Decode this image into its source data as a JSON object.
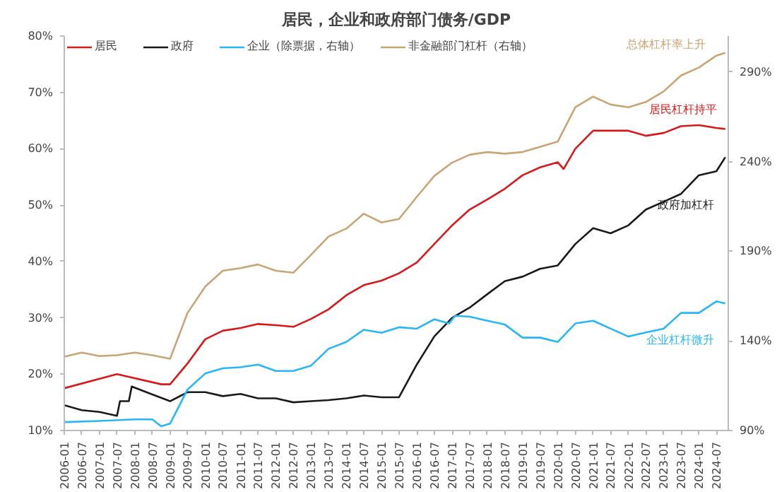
{
  "chart_data": {
    "type": "line",
    "title": "居民，企业和政府部门债务/GDP",
    "xlim": [
      "2006-01",
      "2024-11"
    ],
    "xticks": [
      "2006-01",
      "2006-07",
      "2007-01",
      "2007-07",
      "2008-01",
      "2008-07",
      "2009-01",
      "2009-07",
      "2010-01",
      "2010-07",
      "2011-01",
      "2011-07",
      "2012-01",
      "2012-07",
      "2013-01",
      "2013-07",
      "2014-01",
      "2014-07",
      "2015-01",
      "2015-07",
      "2016-01",
      "2016-07",
      "2017-01",
      "2017-07",
      "2018-01",
      "2018-07",
      "2019-01",
      "2019-07",
      "2020-01",
      "2020-07",
      "2021-01",
      "2021-07",
      "2022-01",
      "2022-07",
      "2023-01",
      "2023-07",
      "2024-01",
      "2024-07"
    ],
    "ylim": [
      10,
      80
    ],
    "yticks": [
      {
        "value": 10,
        "label": "10%"
      },
      {
        "value": 20,
        "label": "20%"
      },
      {
        "value": 30,
        "label": "30%"
      },
      {
        "value": 40,
        "label": "40%"
      },
      {
        "value": 50,
        "label": "50%"
      },
      {
        "value": 60,
        "label": "60%"
      },
      {
        "value": 70,
        "label": "70%"
      },
      {
        "value": 80,
        "label": "80%"
      }
    ],
    "y2lim": [
      90,
      310
    ],
    "y2ticks": [
      {
        "value": 90,
        "label": "90%"
      },
      {
        "value": 140,
        "label": "140%"
      },
      {
        "value": 190,
        "label": "190%"
      },
      {
        "value": 240,
        "label": "240%"
      },
      {
        "value": 290,
        "label": "290%"
      }
    ],
    "grid": false,
    "legend": "top left",
    "marker": "none",
    "line_style": "solid",
    "series": [
      {
        "name": "居民",
        "color": "#d7191c",
        "x": [
          "2006-01",
          "2007-07",
          "2008-10",
          "2009-01",
          "2009-07",
          "2010-01",
          "2010-07",
          "2011-01",
          "2011-07",
          "2012-01",
          "2012-07",
          "2013-01",
          "2013-07",
          "2014-01",
          "2014-07",
          "2015-01",
          "2015-07",
          "2016-01",
          "2016-07",
          "2017-01",
          "2017-07",
          "2018-01",
          "2018-07",
          "2019-01",
          "2019-07",
          "2020-01",
          "2020-03",
          "2020-07",
          "2021-01",
          "2021-07",
          "2022-01",
          "2022-07",
          "2023-01",
          "2023-07",
          "2024-01",
          "2024-07",
          "2024-10"
        ],
        "values": [
          17.5,
          20.0,
          18.2,
          18.2,
          21.9,
          26.2,
          27.7,
          28.2,
          28.9,
          28.7,
          28.4,
          29.8,
          31.5,
          34.0,
          35.8,
          36.6,
          37.9,
          39.8,
          43.1,
          46.4,
          49.2,
          51.0,
          52.9,
          55.3,
          56.7,
          57.6,
          56.4,
          60.0,
          63.2,
          63.2,
          63.2,
          62.3,
          62.8,
          64.0,
          64.2,
          63.7,
          63.5
        ]
      },
      {
        "name": "政府",
        "color": "#1a1a1a",
        "x": [
          "2006-01",
          "2006-07",
          "2007-01",
          "2007-07",
          "2007-08",
          "2007-11",
          "2007-12",
          "2008-07",
          "2009-01",
          "2009-07",
          "2010-01",
          "2010-07",
          "2011-01",
          "2011-07",
          "2012-01",
          "2012-07",
          "2013-01",
          "2013-07",
          "2014-01",
          "2014-07",
          "2015-01",
          "2015-07",
          "2016-01",
          "2016-07",
          "2017-01",
          "2017-07",
          "2018-01",
          "2018-07",
          "2019-01",
          "2019-07",
          "2020-01",
          "2020-07",
          "2021-01",
          "2021-07",
          "2022-01",
          "2022-07",
          "2023-01",
          "2023-07",
          "2024-01",
          "2024-07",
          "2024-10"
        ],
        "values": [
          14.5,
          13.6,
          13.3,
          12.6,
          15.2,
          15.2,
          17.8,
          16.4,
          15.2,
          16.8,
          16.8,
          16.1,
          16.5,
          15.7,
          15.7,
          15.0,
          15.2,
          15.4,
          15.7,
          16.2,
          15.9,
          15.9,
          21.7,
          26.7,
          30.0,
          31.8,
          34.2,
          36.5,
          37.3,
          38.7,
          39.3,
          43.1,
          45.9,
          45.0,
          46.4,
          49.2,
          50.6,
          52.0,
          55.3,
          56.0,
          58.5
        ]
      },
      {
        "name": "企业（除票据，右轴）",
        "color": "#29b6f6",
        "axis": "y2",
        "x": [
          "2006-01",
          "2007-01",
          "2008-01",
          "2008-07",
          "2008-10",
          "2009-01",
          "2009-07",
          "2010-01",
          "2010-07",
          "2011-01",
          "2011-07",
          "2012-01",
          "2012-07",
          "2013-01",
          "2013-07",
          "2014-01",
          "2014-07",
          "2015-01",
          "2015-07",
          "2016-01",
          "2016-07",
          "2016-12",
          "2017-02",
          "2017-07",
          "2018-01",
          "2018-07",
          "2019-01",
          "2019-07",
          "2020-01",
          "2020-07",
          "2021-01",
          "2021-07",
          "2022-01",
          "2022-07",
          "2023-01",
          "2023-07",
          "2024-01",
          "2024-07",
          "2024-10"
        ],
        "values": [
          94.7,
          95.3,
          96.2,
          96.2,
          92.4,
          93.8,
          112.9,
          121.8,
          124.7,
          125.3,
          126.8,
          123.2,
          123.2,
          126.2,
          135.6,
          139.4,
          146.2,
          144.5,
          147.6,
          146.8,
          152.0,
          149.7,
          154.0,
          153.5,
          151.2,
          149.1,
          141.8,
          141.8,
          139.4,
          149.7,
          151.2,
          146.8,
          142.4,
          144.7,
          146.8,
          155.6,
          155.6,
          162.0,
          160.9
        ]
      },
      {
        "name": "非金融部门杠杆（右轴）",
        "color": "#c8a574",
        "axis": "y2",
        "x": [
          "2006-01",
          "2006-07",
          "2007-01",
          "2007-07",
          "2008-01",
          "2008-07",
          "2009-01",
          "2009-07",
          "2010-01",
          "2010-07",
          "2011-01",
          "2011-07",
          "2012-01",
          "2012-07",
          "2013-01",
          "2013-07",
          "2014-01",
          "2014-07",
          "2015-01",
          "2015-07",
          "2016-01",
          "2016-07",
          "2017-01",
          "2017-07",
          "2018-01",
          "2018-07",
          "2019-01",
          "2019-07",
          "2020-01",
          "2020-07",
          "2021-01",
          "2021-07",
          "2022-01",
          "2022-07",
          "2023-01",
          "2023-07",
          "2024-01",
          "2024-07",
          "2024-10"
        ],
        "values": [
          131.2,
          133.5,
          131.5,
          132.0,
          133.5,
          132.0,
          130.0,
          155.6,
          170.3,
          179.1,
          180.6,
          182.6,
          179.1,
          178.0,
          188.0,
          198.2,
          202.6,
          210.9,
          206.0,
          208.0,
          220.3,
          232.0,
          239.4,
          243.8,
          245.3,
          244.4,
          245.3,
          248.2,
          251.2,
          270.3,
          276.2,
          271.8,
          270.3,
          273.2,
          279.1,
          288.0,
          292.4,
          299.1,
          300.6
        ]
      }
    ],
    "annotations": [
      "居民杠杆持平",
      "政府加杠杆",
      "企业杠杆微升",
      "总体杠杆率上升"
    ]
  }
}
